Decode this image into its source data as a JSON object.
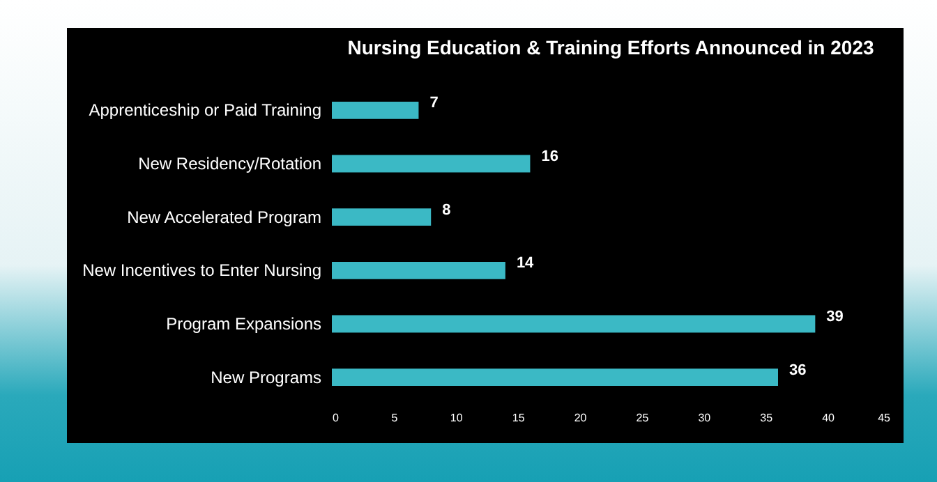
{
  "chart_data": {
    "type": "bar",
    "orientation": "horizontal",
    "title": "Nursing Education & Training Efforts Announced in 2023",
    "categories": [
      "Apprenticeship or Paid Training",
      "New Residency/Rotation",
      "New Accelerated Program",
      "New Incentives to Enter Nursing",
      "Program Expansions",
      "New Programs"
    ],
    "values": [
      7,
      16,
      8,
      14,
      39,
      36
    ],
    "color": "#3bb9c5",
    "xlim": [
      0,
      45
    ],
    "xticks": [
      0,
      5,
      10,
      15,
      20,
      25,
      30,
      35,
      40,
      45
    ],
    "grid": false,
    "data_labels": true
  }
}
